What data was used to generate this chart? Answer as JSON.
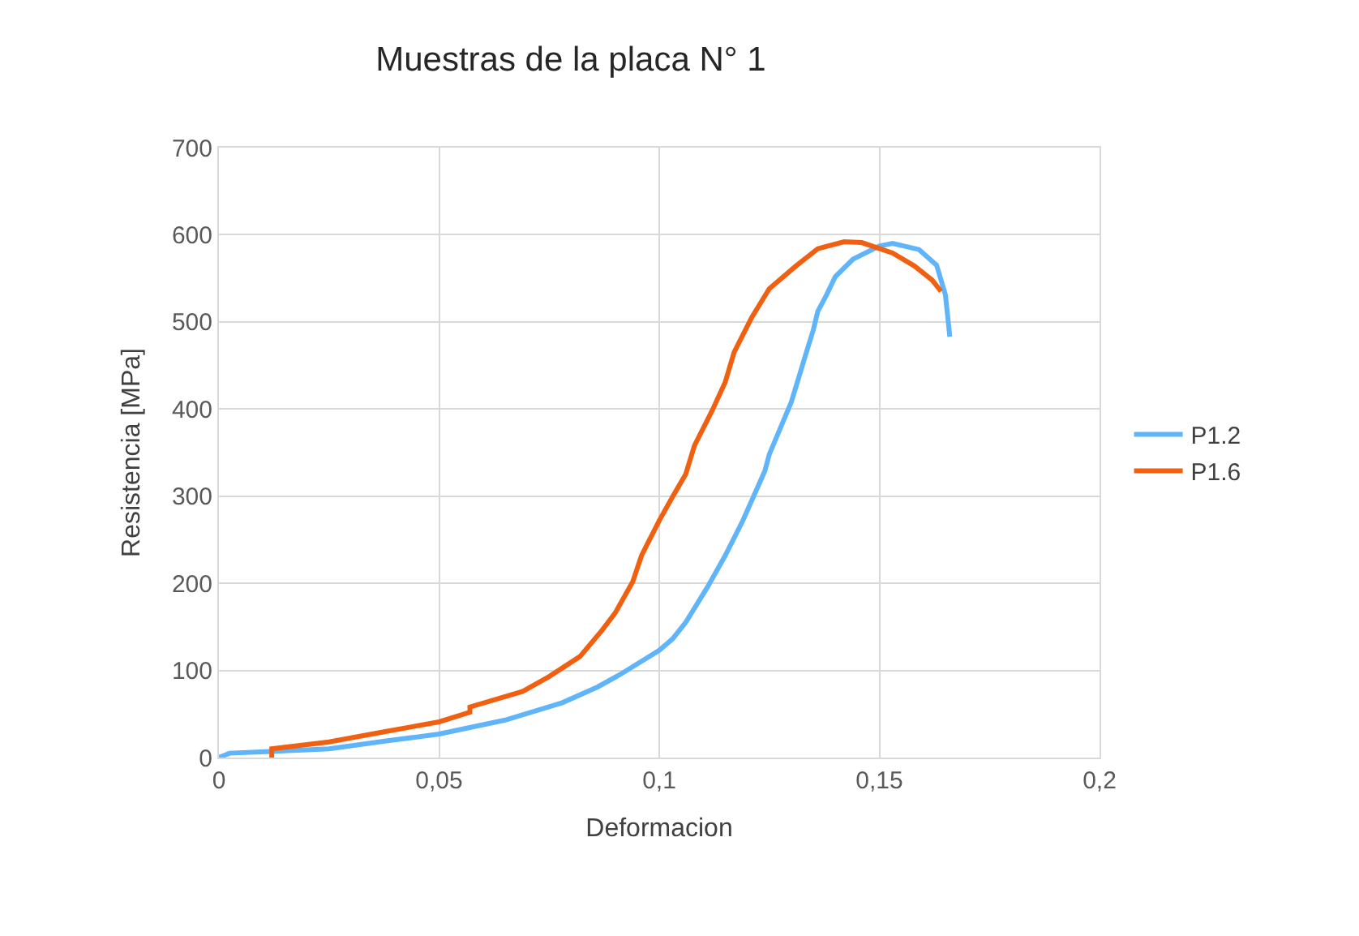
{
  "chart_data": {
    "type": "line",
    "title": "Muestras de la placa N° 1",
    "xlabel": "Deformacion",
    "ylabel": "Resistencia [MPa]",
    "xlim": [
      0,
      0.2
    ],
    "xticks": [
      0,
      {
        "value": 0.05,
        "label": "0,05"
      },
      {
        "value": 0.1,
        "label": "0,1"
      },
      {
        "value": 0.15,
        "label": "0,15"
      },
      {
        "value": 0.2,
        "label": "0,2"
      }
    ],
    "ylim": [
      0,
      700
    ],
    "yticks": [
      0,
      100,
      200,
      300,
      400,
      500,
      600,
      700
    ],
    "grid": true,
    "legend": "right",
    "marker": "none",
    "line_style": "solid",
    "series": [
      {
        "name": "P1.2",
        "color": "#5fb4fa",
        "x": [
          0,
          0.0024,
          0.0117,
          0.025,
          0.038,
          0.05,
          0.065,
          0.078,
          0.086,
          0.091,
          0.1,
          0.103,
          0.106,
          0.111,
          0.115,
          0.119,
          0.124,
          0.125,
          0.13,
          0.133,
          0.135,
          0.136,
          0.138,
          0.14,
          0.144,
          0.15,
          0.153,
          0.159,
          0.163,
          0.165,
          0.166
        ],
        "values": [
          0,
          5,
          7,
          10,
          19,
          27,
          43,
          63,
          81,
          95,
          123,
          136,
          155,
          196,
          232,
          272,
          329,
          348,
          408,
          458,
          491,
          512,
          531,
          552,
          572,
          587,
          590,
          583,
          565,
          531,
          483
        ]
      },
      {
        "name": "P1.6",
        "color": "#f06010",
        "x": [
          0.012,
          0.012,
          0.025,
          0.038,
          0.05,
          0.057,
          0.057,
          0.069,
          0.075,
          0.082,
          0.087,
          0.09,
          0.094,
          0.096,
          0.1,
          0.103,
          0.106,
          0.108,
          0.112,
          0.115,
          0.117,
          0.121,
          0.125,
          0.131,
          0.136,
          0.142,
          0.146,
          0.153,
          0.158,
          0.162,
          0.164
        ],
        "values": [
          0,
          10,
          18,
          30,
          41,
          52,
          58,
          76,
          93,
          116,
          146,
          166,
          202,
          232,
          272,
          299,
          325,
          358,
          398,
          431,
          465,
          505,
          538,
          564,
          584,
          592,
          591,
          579,
          564,
          548,
          535
        ]
      }
    ]
  }
}
